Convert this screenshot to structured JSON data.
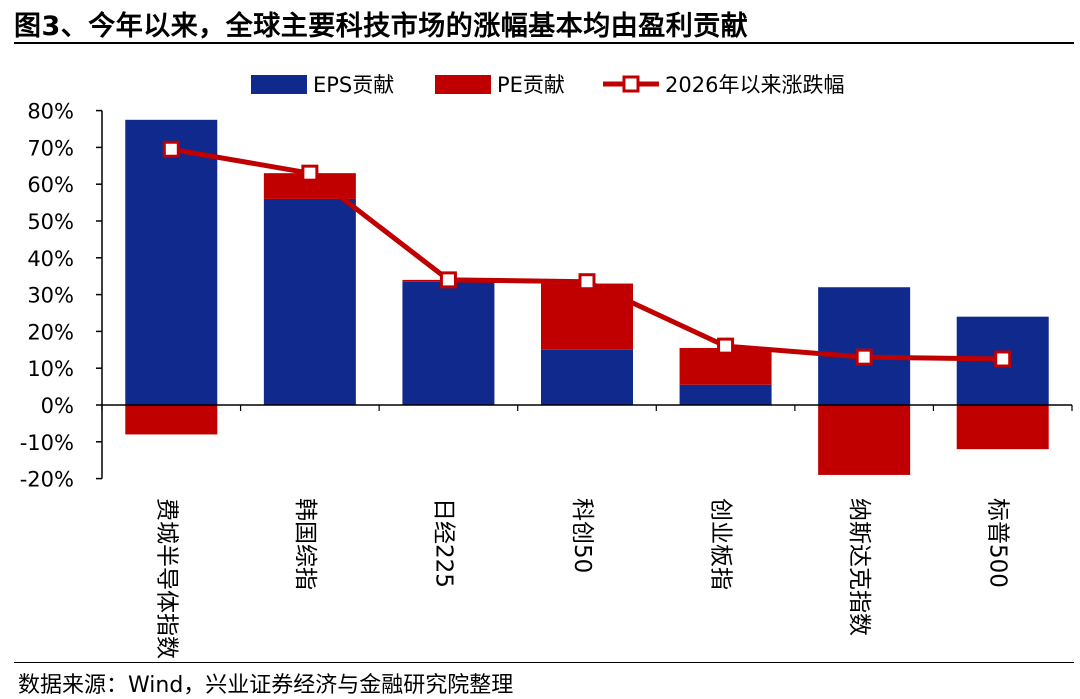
{
  "header": {
    "title": "图3、今年以来，全球主要科技市场的涨幅基本均由盈利贡献"
  },
  "footer": {
    "source": "数据来源：Wind，兴业证券经济与金融研究院整理"
  },
  "colors": {
    "eps": "#0f2a8c",
    "pe": "#c00000",
    "line": "#c00000",
    "marker_fill": "#ffffff"
  },
  "chart_data": {
    "type": "bar",
    "stacked": true,
    "categories": [
      "费城半导体指数",
      "韩国综指",
      "日经225",
      "科创50",
      "创业板指",
      "纳斯达克指数",
      "标普500"
    ],
    "series": [
      {
        "name": "EPS贡献",
        "type": "bar",
        "values": [
          77.5,
          56,
          33.5,
          15,
          5.5,
          32,
          24
        ]
      },
      {
        "name": "PE贡献",
        "type": "bar",
        "values": [
          -8,
          7,
          0.5,
          18,
          10,
          -19,
          -12
        ]
      },
      {
        "name": "2026年以来涨跌幅",
        "type": "line",
        "values": [
          69.5,
          63,
          34,
          33.5,
          16,
          13,
          12.5
        ]
      }
    ],
    "yticks": [
      "80%",
      "70%",
      "60%",
      "50%",
      "40%",
      "30%",
      "20%",
      "10%",
      "0%",
      "-10%",
      "-20%"
    ],
    "ylim": [
      -20,
      80
    ],
    "legend_position": "top-center",
    "grid": false
  }
}
